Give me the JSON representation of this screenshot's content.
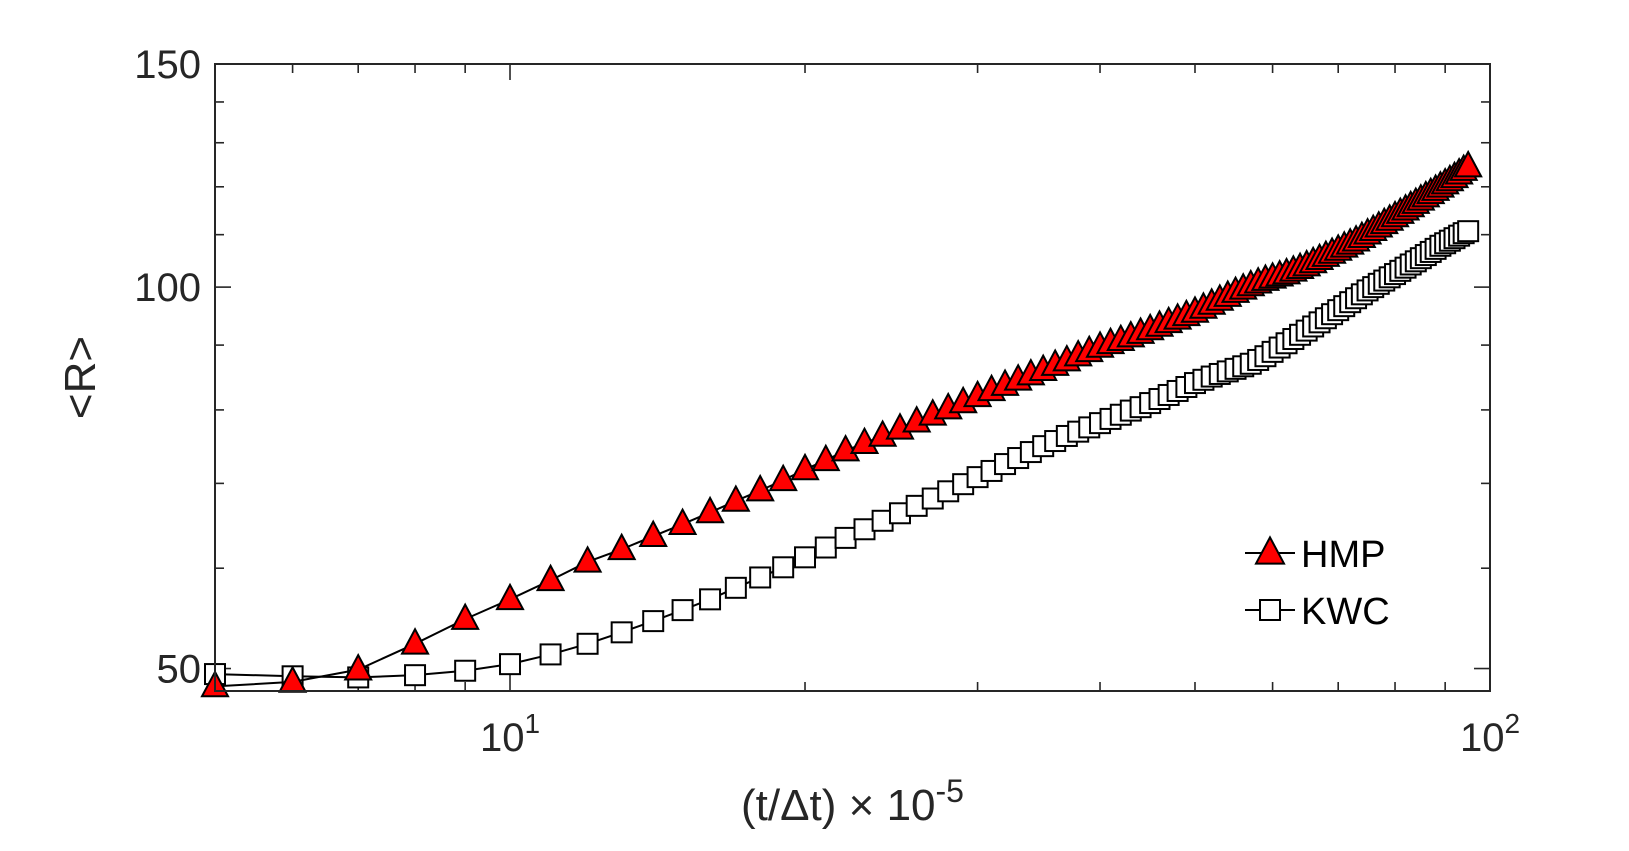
{
  "chart_data": {
    "type": "line",
    "xscale": "log",
    "yscale": "log",
    "xlim": [
      5,
      100
    ],
    "ylim": [
      48,
      150
    ],
    "xlabel": {
      "prefix": "(t/",
      "delta": "Δ",
      "mid": "t) ",
      "times": "×",
      "base": " 10",
      "exp": "-5"
    },
    "ylabel": "<R>",
    "xticks": [
      {
        "value": 10,
        "base": "10",
        "exp": "1"
      },
      {
        "value": 100,
        "base": "10",
        "exp": "2"
      }
    ],
    "yticks": [
      {
        "value": 50,
        "label": "50"
      },
      {
        "value": 100,
        "label": "100"
      },
      {
        "value": 150,
        "label": "150"
      }
    ],
    "legend_position": "bottom-right",
    "series": [
      {
        "name": "HMP",
        "marker": "triangle",
        "color": "#ff0000",
        "edge": "#000000",
        "x": [
          5.0,
          6.0,
          7.0,
          8.0,
          9.0,
          10.0,
          11.0,
          12.0,
          13.0,
          14.0,
          15.0,
          16.0,
          17.0,
          18.0,
          19.0,
          20.0,
          21.0,
          22.0,
          23.0,
          24.0,
          25.0,
          26.0,
          27.0,
          28.0,
          29.0,
          30.0,
          31.0,
          32.0,
          33.0,
          34.0,
          35.0,
          36.0,
          37.0,
          38.0,
          39.0,
          40.0,
          41.0,
          42.0,
          43.0,
          44.0,
          45.0,
          46.0,
          47.0,
          48.0,
          49.0,
          50.0,
          51.0,
          52.0,
          53.0,
          54.0,
          55.0,
          56.0,
          57.0,
          58.0,
          59.0,
          60.0,
          61.0,
          62.0,
          63.0,
          64.0,
          65.0,
          66.0,
          67.0,
          68.0,
          69.0,
          70.0,
          71.0,
          72.0,
          73.0,
          74.0,
          75.0,
          76.0,
          77.0,
          78.0,
          79.0,
          80.0,
          81.0,
          82.0,
          83.0,
          84.0,
          85.0,
          86.0,
          87.0,
          88.0,
          89.0,
          90.0,
          91.0,
          92.0,
          93.0,
          94.0,
          95.0
        ],
        "y": [
          48.4,
          48.8,
          49.9,
          52.3,
          54.7,
          56.7,
          58.7,
          60.7,
          62.1,
          63.6,
          65.0,
          66.4,
          67.8,
          69.1,
          70.4,
          71.8,
          73.0,
          74.3,
          75.3,
          76.3,
          77.3,
          78.3,
          79.3,
          80.2,
          81.1,
          82.0,
          82.9,
          83.7,
          84.5,
          85.3,
          86.0,
          86.8,
          87.5,
          88.3,
          89.0,
          89.7,
          90.3,
          90.8,
          91.4,
          92.0,
          92.6,
          93.2,
          93.8,
          94.4,
          95.0,
          95.6,
          96.3,
          97.0,
          97.7,
          98.4,
          99.1,
          99.7,
          100.3,
          100.8,
          101.3,
          101.7,
          102.1,
          102.5,
          103.0,
          103.5,
          104.0,
          104.6,
          105.2,
          105.8,
          106.4,
          107.0,
          107.6,
          108.2,
          108.8,
          109.5,
          110.2,
          110.9,
          111.6,
          112.3,
          113.0,
          113.7,
          114.4,
          115.1,
          115.8,
          116.5,
          117.2,
          117.9,
          118.6,
          119.3,
          120.0,
          120.7,
          121.4,
          122.1,
          122.9,
          123.7,
          124.5
        ]
      },
      {
        "name": "KWC",
        "marker": "square",
        "color": "#ffffff",
        "edge": "#000000",
        "x": [
          5.0,
          6.0,
          7.0,
          8.0,
          9.0,
          10.0,
          11.0,
          12.0,
          13.0,
          14.0,
          15.0,
          16.0,
          17.0,
          18.0,
          19.0,
          20.0,
          21.0,
          22.0,
          23.0,
          24.0,
          25.0,
          26.0,
          27.0,
          28.0,
          29.0,
          30.0,
          31.0,
          32.0,
          33.0,
          34.0,
          35.0,
          36.0,
          37.0,
          38.0,
          39.0,
          40.0,
          41.0,
          42.0,
          43.0,
          44.0,
          45.0,
          46.0,
          47.0,
          48.0,
          49.0,
          50.0,
          51.0,
          52.0,
          53.0,
          54.0,
          55.0,
          56.0,
          57.0,
          58.0,
          59.0,
          60.0,
          61.0,
          62.0,
          63.0,
          64.0,
          65.0,
          66.0,
          67.0,
          68.0,
          69.0,
          70.0,
          71.0,
          72.0,
          73.0,
          74.0,
          75.0,
          76.0,
          77.0,
          78.0,
          79.0,
          80.0,
          81.0,
          82.0,
          83.0,
          84.0,
          85.0,
          86.0,
          87.0,
          88.0,
          89.0,
          90.0,
          91.0,
          92.0,
          93.0,
          94.0,
          95.0
        ],
        "y": [
          49.5,
          49.3,
          49.2,
          49.4,
          49.8,
          50.4,
          51.3,
          52.3,
          53.4,
          54.5,
          55.6,
          56.7,
          57.9,
          59.0,
          60.1,
          61.2,
          62.3,
          63.4,
          64.4,
          65.4,
          66.3,
          67.2,
          68.1,
          69.0,
          69.9,
          70.8,
          71.6,
          72.5,
          73.3,
          74.1,
          74.9,
          75.6,
          76.3,
          76.9,
          77.5,
          78.1,
          78.7,
          79.3,
          79.9,
          80.4,
          81.0,
          81.6,
          82.2,
          82.8,
          83.4,
          84.0,
          84.5,
          85.0,
          85.4,
          85.8,
          86.2,
          86.6,
          87.0,
          87.6,
          88.2,
          88.9,
          89.6,
          90.3,
          91.0,
          91.7,
          92.4,
          93.1,
          93.8,
          94.5,
          95.2,
          95.9,
          96.6,
          97.3,
          98.0,
          98.7,
          99.4,
          100.0,
          100.6,
          101.2,
          101.8,
          102.4,
          103.0,
          103.6,
          104.2,
          104.8,
          105.4,
          106.0,
          106.6,
          107.2,
          107.8,
          108.3,
          108.8,
          109.3,
          109.8,
          110.3,
          110.7
        ]
      }
    ]
  }
}
